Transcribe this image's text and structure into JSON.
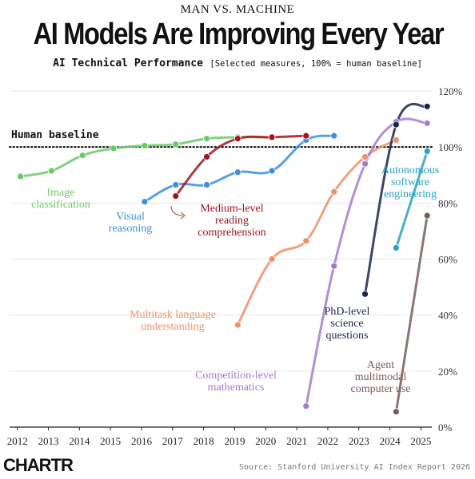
{
  "kicker": "MAN VS. MACHINE",
  "title": "AI Models Are Improving Every Year",
  "subtitle": "AI Technical Performance",
  "subtitle_note": "[Selected measures, 100% = human baseline]",
  "source": "Source: Stanford University AI Index Report 2026",
  "logo": "CHARTR",
  "chart_data": {
    "type": "line",
    "xlim": [
      2011.75,
      2025.35
    ],
    "ylim": [
      0,
      120
    ],
    "x_ticks": [
      2012,
      2013,
      2014,
      2015,
      2016,
      2017,
      2018,
      2019,
      2020,
      2021,
      2022,
      2023,
      2024,
      2025
    ],
    "y_ticks": [
      0,
      20,
      40,
      60,
      80,
      100,
      120
    ],
    "y_tick_labels": [
      "0%",
      "20%",
      "40%",
      "60%",
      "80%",
      "100%",
      "120%"
    ],
    "baseline": {
      "value": 100,
      "label": "Human baseline"
    },
    "series": [
      {
        "name": "Image classification",
        "color": "#6cc96a",
        "x": [
          2012.1,
          2013.1,
          2014.1,
          2015.1,
          2016.1,
          2017.1,
          2018.1,
          2019.1,
          2020.2
        ],
        "y": [
          89.5,
          91.5,
          97,
          99.5,
          100.5,
          101,
          103,
          103.5,
          103.5
        ]
      },
      {
        "name": "Visual reasoning",
        "color": "#3d8fdb",
        "x": [
          2016.1,
          2017.1,
          2018.1,
          2019.1,
          2020.2,
          2021.3,
          2022.2
        ],
        "y": [
          80.5,
          86.5,
          86.5,
          91,
          91.5,
          102.5,
          104
        ]
      },
      {
        "name": "Medium-level reading comprehension",
        "color": "#a3151e",
        "x": [
          2017.1,
          2018.1,
          2019.1,
          2020.2,
          2021.3
        ],
        "y": [
          82.5,
          96.5,
          103,
          103.5,
          104
        ]
      },
      {
        "name": "Multitask language understanding",
        "color": "#f0916a",
        "x": [
          2019.1,
          2020.2,
          2021.3,
          2022.2,
          2023.2,
          2024.2
        ],
        "y": [
          36.5,
          60,
          66.5,
          84,
          96.5,
          102.5
        ]
      },
      {
        "name": "Competition-level mathematics",
        "color": "#a47bcf",
        "x": [
          2021.3,
          2022.2,
          2023.2,
          2024.2,
          2025.2
        ],
        "y": [
          7.5,
          57.5,
          94,
          109,
          108.5
        ]
      },
      {
        "name": "PhD-level science questions",
        "color": "#1c2550",
        "x": [
          2023.2,
          2024.2,
          2025.2
        ],
        "y": [
          47.5,
          108,
          114.5
        ]
      },
      {
        "name": "Autonomous software engineering",
        "color": "#2aa0c7",
        "x": [
          2024.2,
          2025.2
        ],
        "y": [
          64,
          98.5
        ]
      },
      {
        "name": "Agent multimodal computer use",
        "color": "#7c5a5a",
        "x": [
          2024.2,
          2025.2
        ],
        "y": [
          5.5,
          75.5
        ]
      }
    ],
    "labels": [
      {
        "series": 0,
        "lines": [
          "Image",
          "classification"
        ]
      },
      {
        "series": 1,
        "lines": [
          "Visual",
          "reasoning"
        ]
      },
      {
        "series": 2,
        "lines": [
          "Medium-level",
          "reading",
          "comprehension"
        ]
      },
      {
        "series": 3,
        "lines": [
          "Multitask language",
          "understanding"
        ]
      },
      {
        "series": 4,
        "lines": [
          "Competition-level",
          "mathematics"
        ]
      },
      {
        "series": 5,
        "lines": [
          "PhD-level",
          "science",
          "questions"
        ]
      },
      {
        "series": 6,
        "lines": [
          "Autonomous",
          "software",
          "engineering"
        ]
      },
      {
        "series": 7,
        "lines": [
          "Agent",
          "multimodal",
          "computer use"
        ]
      }
    ]
  }
}
